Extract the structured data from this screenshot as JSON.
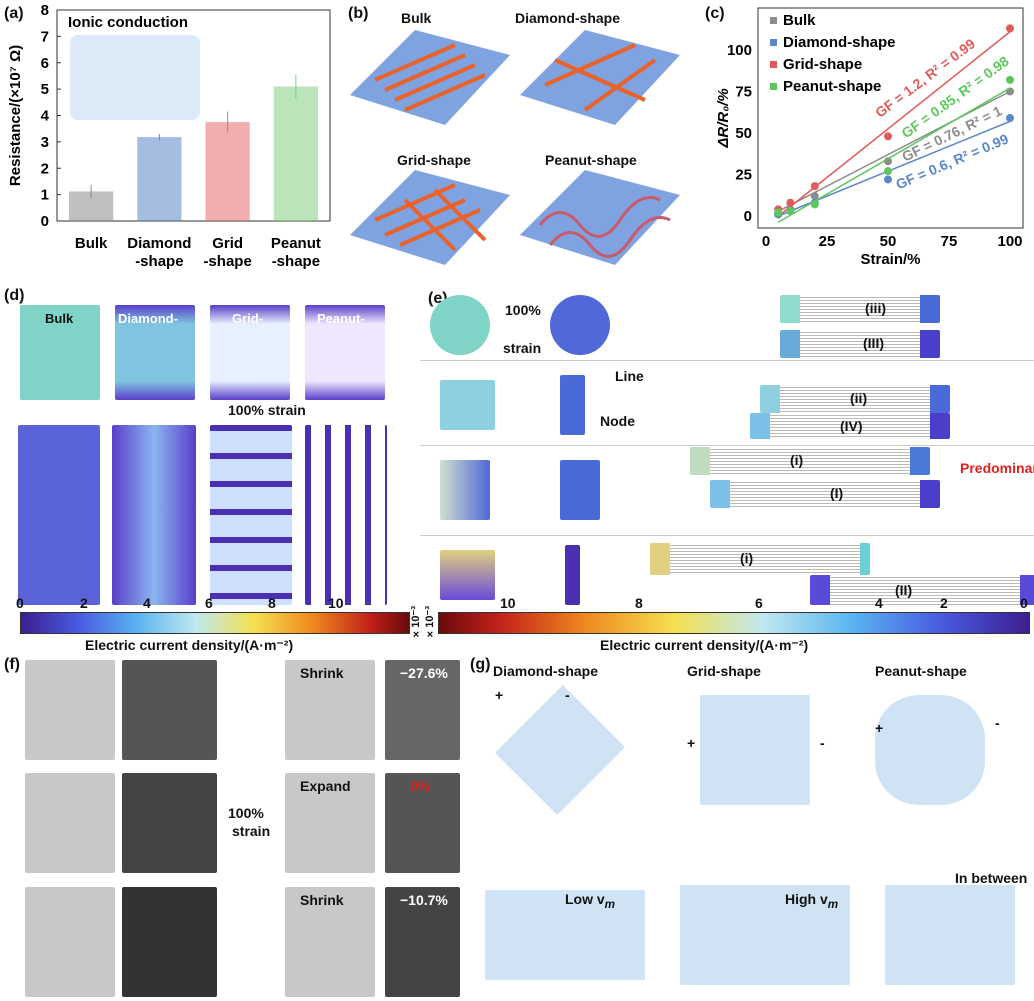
{
  "panels": {
    "a": "(a)",
    "b": "(b)",
    "c": "(c)",
    "d": "(d)",
    "e": "(e)",
    "f": "(f)",
    "g": "(g)"
  },
  "chart_data": [
    {
      "type": "bar",
      "title": "Ionic conduction",
      "ylabel": "Resistance/(×10⁷ Ω)",
      "ylim": [
        0,
        8
      ],
      "yticks": [
        0,
        1,
        2,
        3,
        4,
        5,
        6,
        7,
        8
      ],
      "categories": [
        "Bulk",
        "Diamond -shape",
        "Grid -shape",
        "Peanut -shape"
      ],
      "cat_lines": [
        [
          "Bulk",
          ""
        ],
        [
          "Diamond",
          "-shape"
        ],
        [
          "Grid",
          "-shape"
        ],
        [
          "Peanut",
          "-shape"
        ]
      ],
      "values": [
        1.12,
        3.18,
        3.75,
        5.1
      ],
      "errors": [
        0.25,
        0.12,
        0.4,
        0.45
      ],
      "colors": [
        "#8a8a8a",
        "#5b86c9",
        "#e86b6b",
        "#7fcf7f"
      ]
    },
    {
      "type": "scatter",
      "xlabel": "Strain/%",
      "ylabel": "ΔR/R₀/%",
      "xlim": [
        0,
        100
      ],
      "ylim": [
        -5,
        120
      ],
      "xticks": [
        0,
        25,
        50,
        75,
        100
      ],
      "yticks": [
        0,
        25,
        50,
        75,
        100
      ],
      "legend": "top-left",
      "x": [
        5,
        10,
        20,
        50,
        100
      ],
      "series": [
        {
          "name": "Bulk",
          "color": "#8c8c8c",
          "marker": "square",
          "values": [
            1,
            4,
            12,
            33,
            75
          ],
          "fit": "GF = 0.76, R² = 1",
          "gf": 0.76,
          "b": -1
        },
        {
          "name": "Diamond-shape",
          "color": "#5b86c9",
          "marker": "diamond",
          "values": [
            1,
            3,
            8,
            22,
            59
          ],
          "fit": "GF = 0.6, R² = 0.99",
          "gf": 0.6,
          "b": -3
        },
        {
          "name": "Grid-shape",
          "color": "#e25a5a",
          "marker": "star",
          "values": [
            4,
            8,
            18,
            48,
            113
          ],
          "fit": "GF = 1.2, R² = 0.99",
          "gf": 1.17,
          "b": -6
        },
        {
          "name": "Peanut-shape",
          "color": "#5cc85c",
          "marker": "triangle",
          "values": [
            2,
            3,
            7,
            27,
            82
          ],
          "fit": "GF = 0.85, R² = 0.98",
          "gf": 0.85,
          "b": -8
        }
      ]
    }
  ],
  "b": {
    "labels": [
      "Bulk",
      "Diamond-shape",
      "Grid-shape",
      "Peanut-shape"
    ]
  },
  "d": {
    "labels": [
      "Bulk",
      "Diamond-",
      "Grid-",
      "Peanut-"
    ],
    "strain": "100% strain",
    "colorbar": {
      "ticks": [
        "0",
        "2",
        "4",
        "6",
        "8",
        "10"
      ],
      "unit": "×10⁻³",
      "label": "Electric current density/(A·m⁻²)"
    }
  },
  "e": {
    "strain_top": "100%",
    "strain_bottom": "strain",
    "line": "Line",
    "node": "Node",
    "predominant": "Predominant",
    "segments": [
      "(iii)",
      "(III)",
      "(ii)",
      "(IV)",
      "(i)",
      "(I)",
      "(i)",
      "(II)"
    ],
    "colorbar": {
      "ticks": [
        "10",
        "8",
        "6",
        "4",
        "2",
        "0"
      ],
      "unit": "×10⁻³",
      "label": "Electric current density/(A·m⁻²)"
    }
  },
  "f": {
    "strain": "100%",
    "strain2": "strain",
    "states": [
      "Shrink",
      "Expand",
      "Shrink"
    ],
    "changes": [
      "−27.6%",
      "0%",
      "−10.7%"
    ]
  },
  "g": {
    "titles": [
      "Diamond-shape",
      "Grid-shape",
      "Peanut-shape"
    ],
    "plus": "+",
    "minus": "-",
    "notes": [
      "Low v",
      "High v",
      "In between"
    ],
    "sub": "m"
  }
}
